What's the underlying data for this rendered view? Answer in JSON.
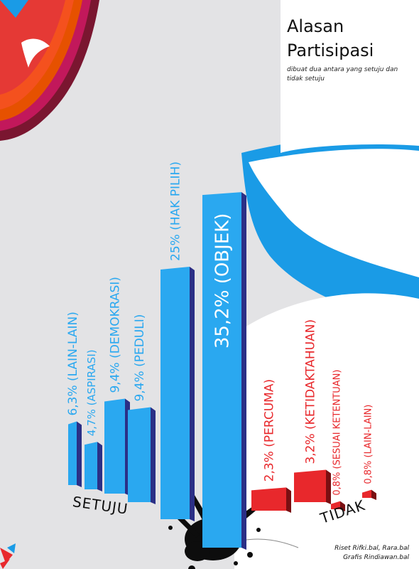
{
  "header": {
    "title_line1": "Alasan",
    "title_line2": "Partisipasi",
    "subtitle": "dibuat dua antara yang setuju dan tidak setuju"
  },
  "groups": {
    "setuju_label": "SETUJU",
    "tidak_label": "TIDAK"
  },
  "credits": {
    "riset": "Riset   Rifki.bal, Rara.bal",
    "grafis": "Grafis  Rindiawan.bal"
  },
  "colors": {
    "setuju_bar": "#2aa8f0",
    "setuju_side": "#2b2f86",
    "tidak_bar": "#e8282c",
    "tidak_side": "#7a0f12",
    "background_gray": "#e3e3e5",
    "wave_blue": "#1a9be6"
  },
  "chart_data": {
    "type": "bar",
    "orientation": "vertical",
    "series": [
      {
        "name": "SETUJU",
        "categories": [
          "LAIN-LAIN",
          "ASPIRASI",
          "DEMOKRASI",
          "PEDULI",
          "HAK PILIH",
          "OBJEK"
        ],
        "values": [
          6.3,
          4.7,
          9.4,
          9.4,
          25,
          35.2
        ],
        "labels": [
          "6,3% (LAIN-LAIN)",
          "4,7% (ASPIRASI)",
          "9,4% (DEMOKRASI)",
          "9,4% (PEDULI)",
          "25% (HAK PILIH)",
          "35,2% (OBJEK)"
        ]
      },
      {
        "name": "TIDAK",
        "categories": [
          "PERCUMA",
          "KETIDAKTAHUAN",
          "SESUAI KETENTUAN",
          "LAIN-LAIN"
        ],
        "values": [
          2.3,
          3.2,
          0.8,
          0.8
        ],
        "labels": [
          "2,3% (PERCUMA)",
          "3,2% (KETIDAKTAHUAN)",
          "0,8% (SESUAI KETENTUAN)",
          "0,8% (LAIN-LAIN)"
        ]
      }
    ],
    "title": "Alasan Partisipasi",
    "xlabel": "",
    "ylabel": "",
    "unit": "%"
  }
}
